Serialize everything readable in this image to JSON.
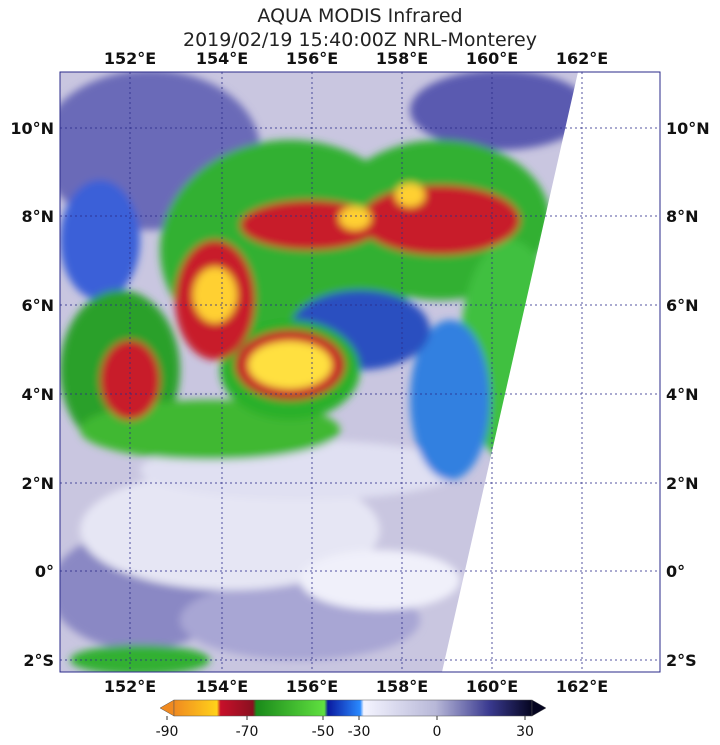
{
  "title": [
    "AQUA MODIS Infrared",
    "2019/02/19 15:40:00Z NRL-Monterey"
  ],
  "longitude_labels": [
    "152°E",
    "154°E",
    "156°E",
    "158°E",
    "160°E",
    "162°E"
  ],
  "latitude_labels": [
    "10°N",
    "8°N",
    "6°N",
    "4°N",
    "2°N",
    "0°",
    "2°S"
  ],
  "colorbar": {
    "ticks": [
      -90,
      -70,
      -50,
      -30,
      0,
      30
    ]
  }
}
